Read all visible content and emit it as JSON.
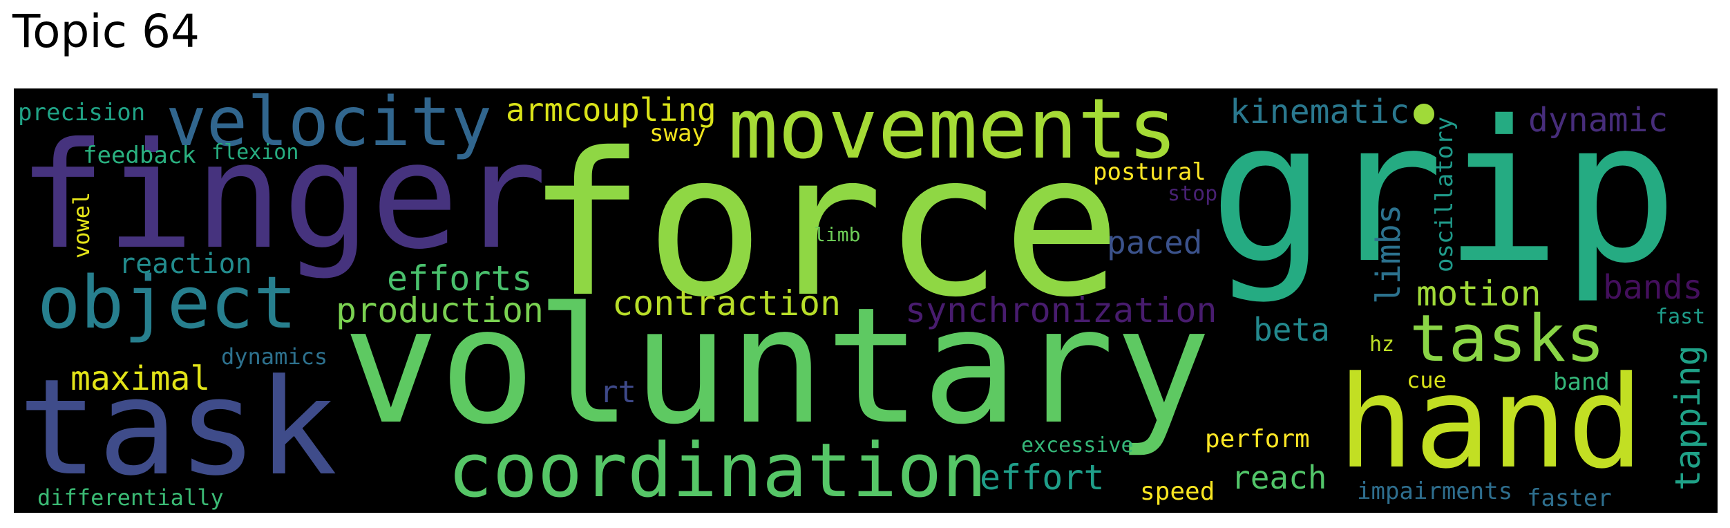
{
  "title": "Topic 64",
  "words": [
    {
      "text": "force",
      "color": "#8fd744"
    },
    {
      "text": "grip",
      "color": "#25ab82"
    },
    {
      "text": "voluntary",
      "color": "#5ec962"
    },
    {
      "text": "finger",
      "color": "#46337e"
    },
    {
      "text": "hand",
      "color": "#c2df23"
    },
    {
      "text": "task",
      "color": "#3f4c8a"
    },
    {
      "text": "movements",
      "color": "#a5db36"
    },
    {
      "text": "coordination",
      "color": "#56c667"
    },
    {
      "text": "object",
      "color": "#277f8e"
    },
    {
      "text": "velocity",
      "color": "#31668e"
    },
    {
      "text": "tasks",
      "color": "#8ad546"
    },
    {
      "text": "synchronization",
      "color": "#481c6e"
    },
    {
      "text": "contraction",
      "color": "#b8de29"
    },
    {
      "text": "production",
      "color": "#7ad151"
    },
    {
      "text": "efforts",
      "color": "#4ac16d"
    },
    {
      "text": "armcoupling",
      "color": "#dae319"
    },
    {
      "text": "kinematic",
      "color": "#2a788e"
    },
    {
      "text": "dynamic",
      "color": "#472d7b"
    },
    {
      "text": "maximal",
      "color": "#e2e418"
    },
    {
      "text": "reaction",
      "color": "#228c8d"
    },
    {
      "text": "motion",
      "color": "#a0da39"
    },
    {
      "text": "bands",
      "color": "#440f5d"
    },
    {
      "text": "limbs",
      "color": "#2c728e"
    },
    {
      "text": "oscillatory",
      "color": "#1f9a8a"
    },
    {
      "text": "tapping",
      "color": "#1fa187"
    },
    {
      "text": "paced",
      "color": "#3b528b"
    },
    {
      "text": "beta",
      "color": "#23898e"
    },
    {
      "text": "reach",
      "color": "#52c569"
    },
    {
      "text": "effort",
      "color": "#1f9e89"
    },
    {
      "text": "rt",
      "color": "#3e4989"
    },
    {
      "text": "precision",
      "color": "#20a386"
    },
    {
      "text": "feedback",
      "color": "#2ab07f"
    },
    {
      "text": "flexion",
      "color": "#27ad81"
    },
    {
      "text": "postural",
      "color": "#fde725"
    },
    {
      "text": "sway",
      "color": "#f1e51d"
    },
    {
      "text": "stop",
      "color": "#482173"
    },
    {
      "text": "limb",
      "color": "#6ece58"
    },
    {
      "text": "vowel",
      "color": "#e5e419"
    },
    {
      "text": "dynamics",
      "color": "#2d718e"
    },
    {
      "text": "hz",
      "color": "#bddf26"
    },
    {
      "text": "cue",
      "color": "#d8e219"
    },
    {
      "text": "band",
      "color": "#35b779"
    },
    {
      "text": "fast",
      "color": "#1e9c89"
    },
    {
      "text": "perform",
      "color": "#fde725"
    },
    {
      "text": "excessive",
      "color": "#35b779"
    },
    {
      "text": "speed",
      "color": "#f8e621"
    },
    {
      "text": "impairments",
      "color": "#2e6e8e"
    },
    {
      "text": "faster",
      "color": "#2e6f8e"
    },
    {
      "text": "differentially",
      "color": "#3bbb75"
    }
  ]
}
